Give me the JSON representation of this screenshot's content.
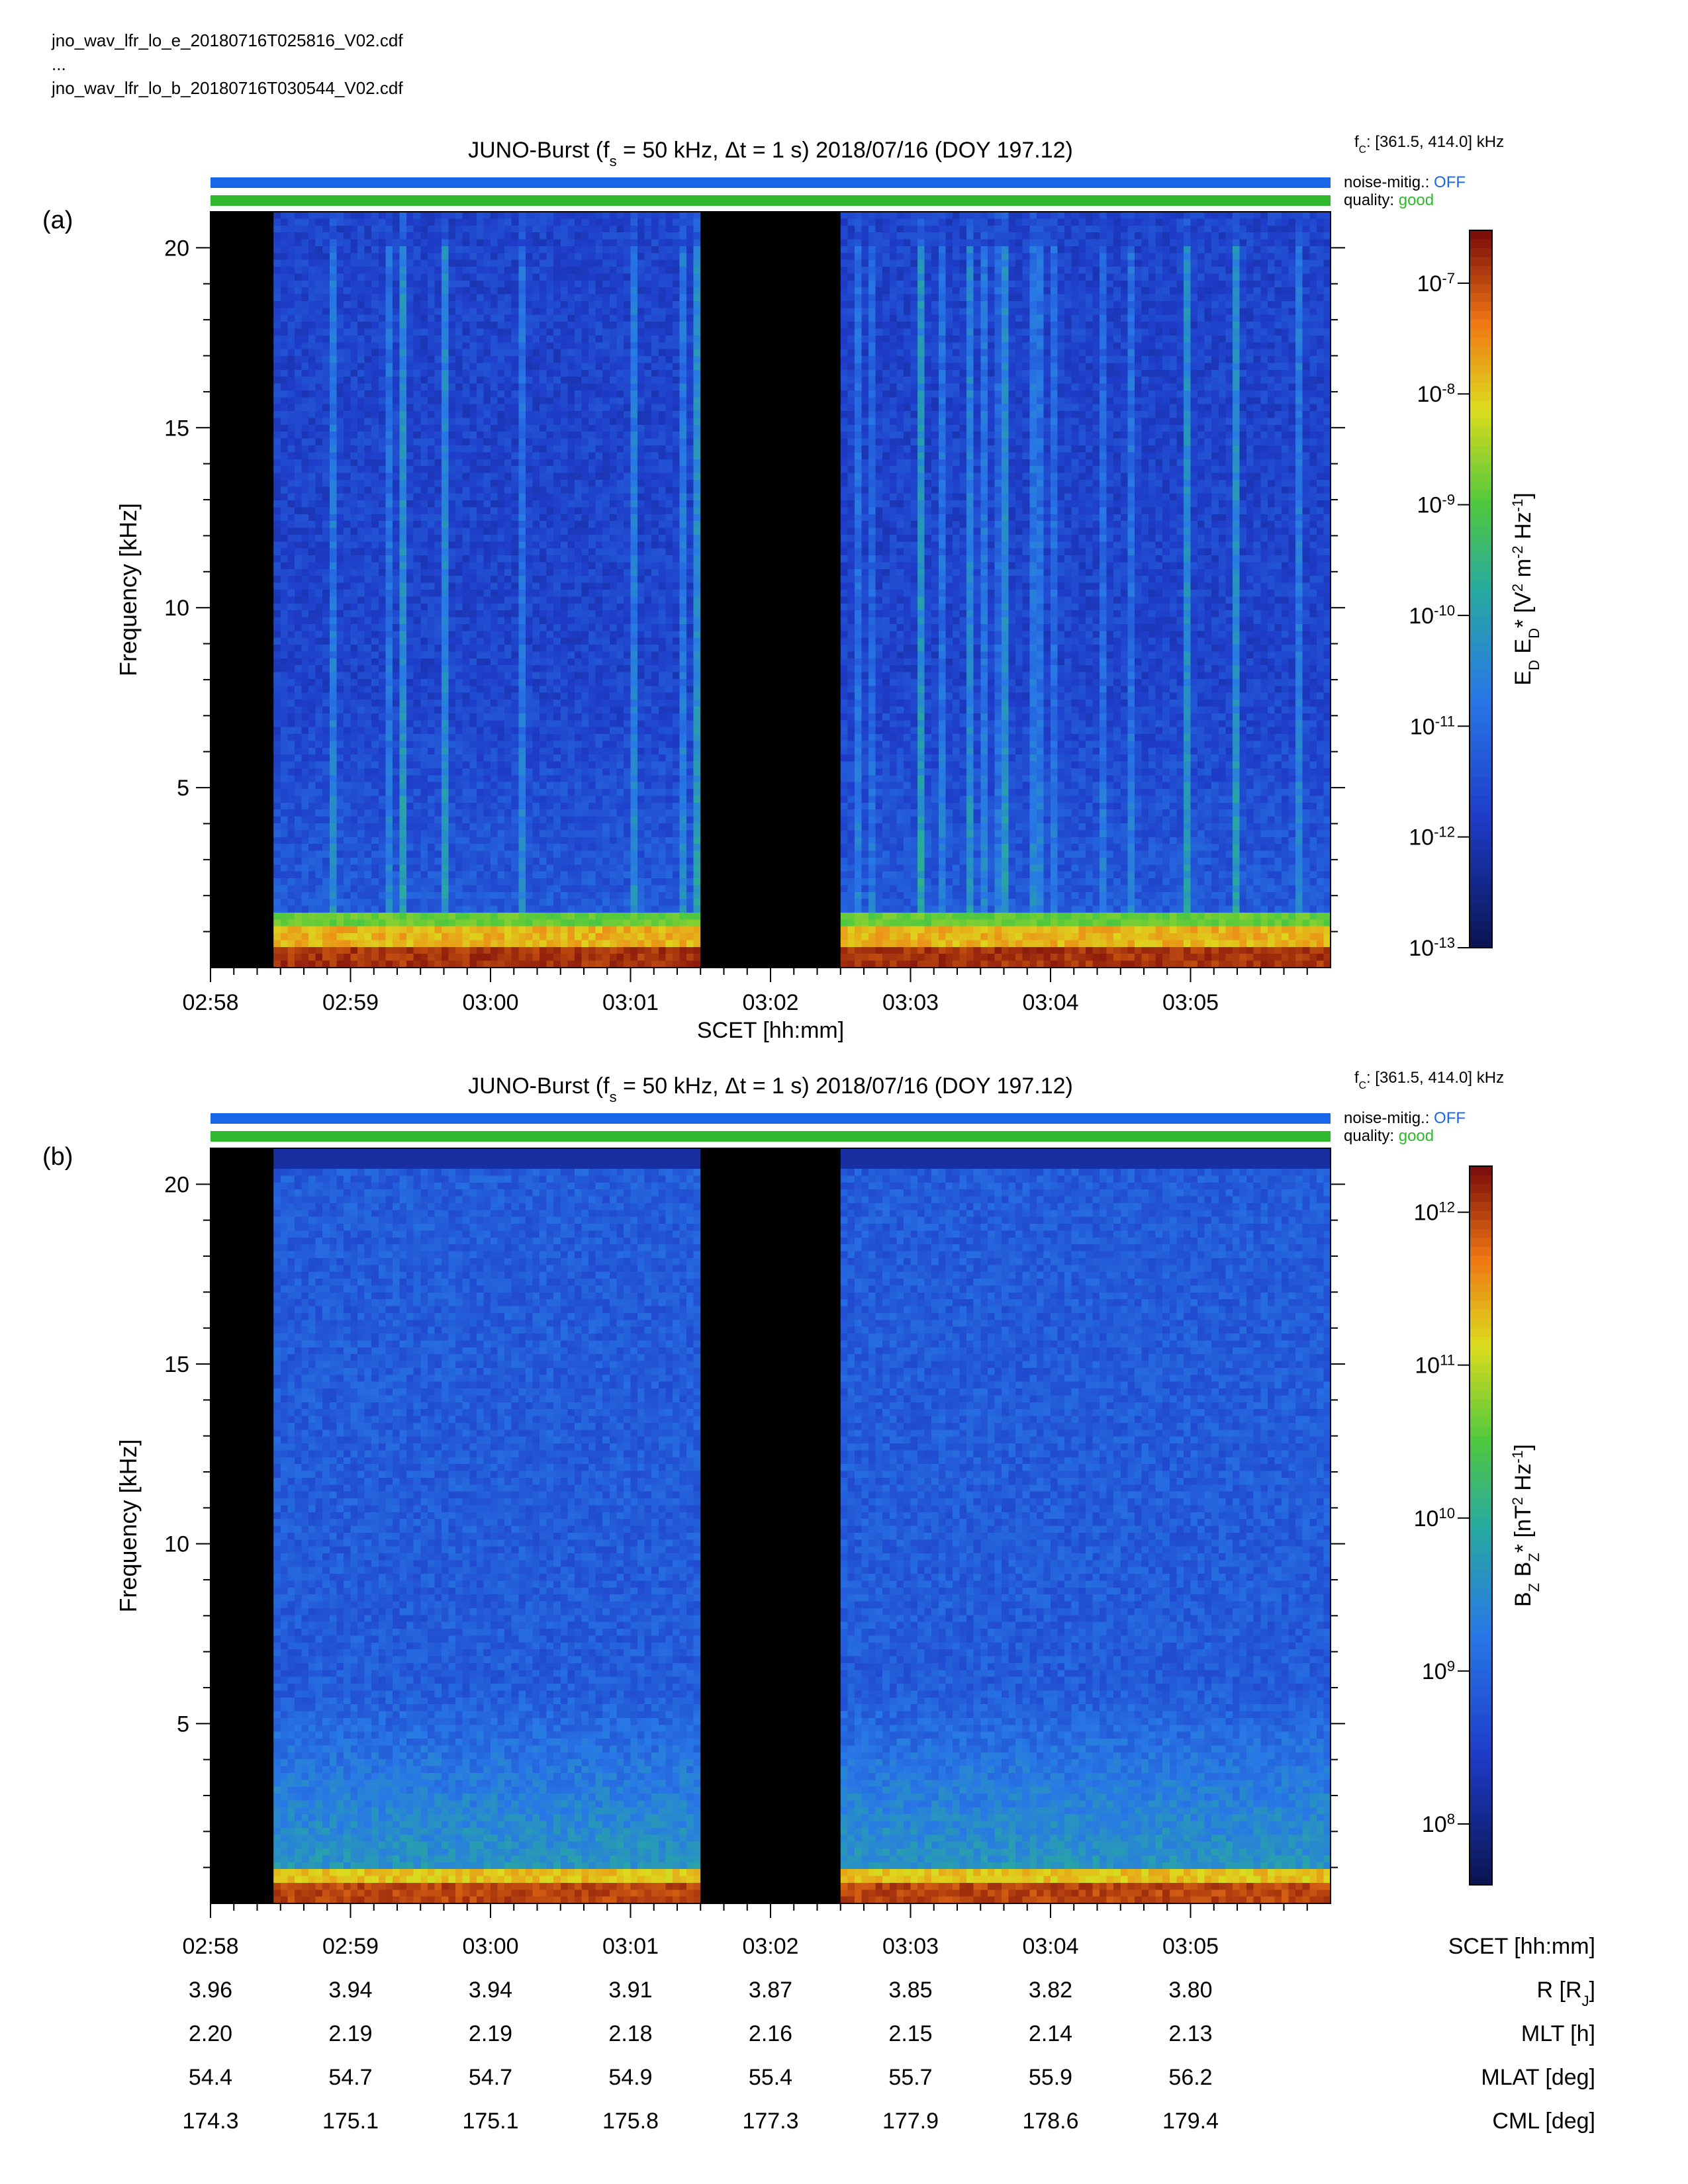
{
  "files": {
    "line1": "jno_wav_lfr_lo_e_20180716T025816_V02.cdf",
    "line2": "...",
    "line3": "jno_wav_lfr_lo_b_20180716T030544_V02.cdf"
  },
  "colors": {
    "noise_bar": "#1a66e8",
    "quality_bar": "#2eb82e",
    "noise_value": "#1a66e8",
    "quality_value": "#2eb82e",
    "gap": "#000000"
  },
  "chart_data": [
    {
      "type": "heatmap",
      "panel_label": "(a)",
      "title": "JUNO-Burst (f_s = 50 kHz, Δt = 1 s)  2018/07/16 (DOY 197.12)",
      "fc_label": "f_C: [361.5, 414.0] kHz",
      "noise_mitig": {
        "label": "noise-mitig.:",
        "value": "OFF"
      },
      "quality": {
        "label": "quality:",
        "value": "good"
      },
      "xlabel": "SCET [hh:mm]",
      "ylabel": "Frequency [kHz]",
      "ylim": [
        0,
        21
      ],
      "yticks": [
        5,
        10,
        15,
        20
      ],
      "xticks": [
        "02:58",
        "02:59",
        "03:00",
        "03:01",
        "03:02",
        "03:03",
        "03:04",
        "03:05"
      ],
      "data_gaps": [
        [
          "02:58:00",
          "02:58:27"
        ],
        [
          "03:01:30",
          "03:02:30"
        ]
      ],
      "colorbar": {
        "label": "E_D E_D* [V^2 m^-2 Hz^-1]",
        "scale": "log",
        "range": [
          1e-13,
          3e-07
        ],
        "ticks": [
          "10^-7",
          "10^-8",
          "10^-9",
          "10^-10",
          "10^-11",
          "10^-12",
          "10^-13"
        ]
      },
      "features": "broadband intense emission below ~1.5 kHz; vertical bursty impulses extending to ~20 kHz"
    },
    {
      "type": "heatmap",
      "panel_label": "(b)",
      "title": "JUNO-Burst (f_s = 50 kHz, Δt = 1 s)  2018/07/16 (DOY 197.12)",
      "fc_label": "f_C: [361.5, 414.0] kHz",
      "noise_mitig": {
        "label": "noise-mitig.:",
        "value": "OFF"
      },
      "quality": {
        "label": "quality:",
        "value": "good"
      },
      "ylabel": "Frequency [kHz]",
      "ylim": [
        0,
        21
      ],
      "yticks": [
        5,
        10,
        15,
        20
      ],
      "data_gaps": [
        [
          "02:58:00",
          "02:58:27"
        ],
        [
          "03:01:30",
          "03:02:30"
        ]
      ],
      "colorbar": {
        "label": "B_Z B_Z* [nT^2 Hz^-1]",
        "scale": "log",
        "range": [
          40000000.0,
          2000000000000.0
        ],
        "ticks": [
          "10^12",
          "10^11",
          "10^10",
          "10^9",
          "10^8"
        ]
      },
      "features": "intense emission below ~1 kHz; diffuse enhancement below ~5 kHz"
    }
  ],
  "ephemeris": {
    "rows": [
      {
        "label": "SCET [hh:mm]",
        "values": [
          "02:58",
          "02:59",
          "03:00",
          "03:01",
          "03:02",
          "03:03",
          "03:04",
          "03:05"
        ]
      },
      {
        "label": "R [R_J]",
        "values": [
          "3.96",
          "3.94",
          "3.94",
          "3.91",
          "3.87",
          "3.85",
          "3.82",
          "3.80"
        ]
      },
      {
        "label": "MLT [h]",
        "values": [
          "2.20",
          "2.19",
          "2.19",
          "2.18",
          "2.16",
          "2.15",
          "2.14",
          "2.13"
        ]
      },
      {
        "label": "MLAT [deg]",
        "values": [
          "54.4",
          "54.7",
          "54.7",
          "54.9",
          "55.4",
          "55.7",
          "55.9",
          "56.2"
        ]
      },
      {
        "label": "CML [deg]",
        "values": [
          "174.3",
          "175.1",
          "175.1",
          "175.8",
          "177.3",
          "177.9",
          "178.6",
          "179.4"
        ]
      }
    ]
  }
}
